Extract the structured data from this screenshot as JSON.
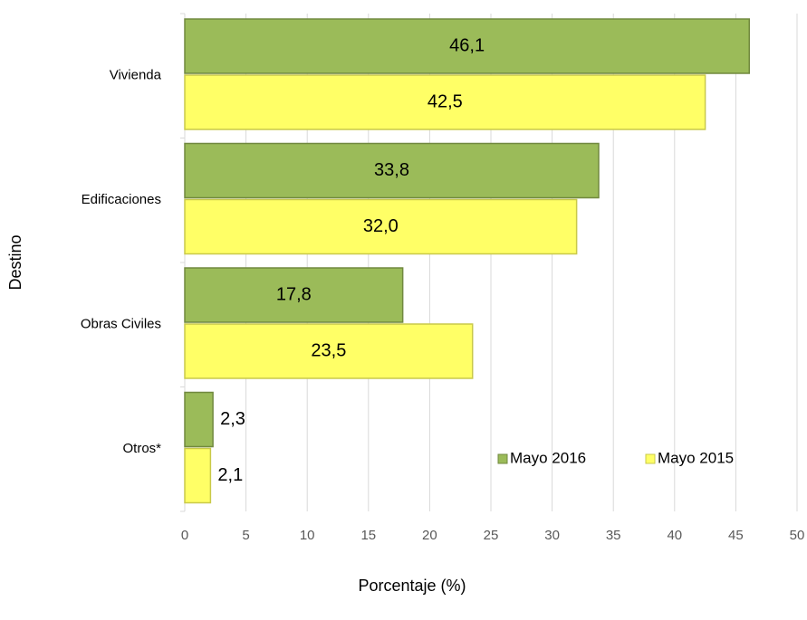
{
  "chart_data": {
    "type": "hbar",
    "categories": [
      "Vivienda",
      "Edificaciones",
      "Obras Civiles",
      "Otros*"
    ],
    "series": [
      {
        "name": "Mayo 2016",
        "color": "#9bbb59",
        "values": [
          46.1,
          33.8,
          17.8,
          2.3
        ],
        "value_labels": [
          "46,1",
          "33,8",
          "17,8",
          "2,3"
        ]
      },
      {
        "name": "Mayo 2015",
        "color": "#ffff66",
        "values": [
          42.5,
          32.0,
          23.5,
          2.1
        ],
        "value_labels": [
          "42,5",
          "32,0",
          "23,5",
          "2,1"
        ]
      }
    ],
    "xlabel": "Porcentaje (%)",
    "ylabel": "Destino",
    "xlim": [
      0,
      50
    ],
    "xticks": [
      0,
      5,
      10,
      15,
      20,
      25,
      30,
      35,
      40,
      45,
      50
    ],
    "grid": true,
    "legend": "lower right"
  }
}
